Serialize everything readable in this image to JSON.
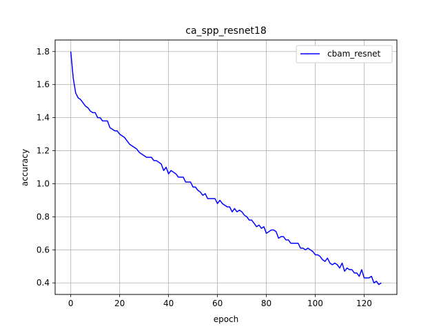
{
  "chart_data": {
    "type": "line",
    "title": "ca_spp_resnet18",
    "xlabel": "epoch",
    "ylabel": "accuracy",
    "xlim": [
      -6.4,
      133.4
    ],
    "ylim": [
      0.33,
      1.87
    ],
    "xticks": [
      0,
      20,
      40,
      60,
      80,
      100,
      120
    ],
    "xtick_labels": [
      "0",
      "20",
      "40",
      "60",
      "80",
      "100",
      "120"
    ],
    "yticks": [
      0.4,
      0.6,
      0.8,
      1.0,
      1.2,
      1.4,
      1.6,
      1.8
    ],
    "ytick_labels": [
      "0.4",
      "0.6",
      "0.8",
      "1.0",
      "1.2",
      "1.4",
      "1.6",
      "1.8"
    ],
    "grid": true,
    "legend_position": "upper right",
    "series": [
      {
        "name": "cbam_resnet",
        "color": "#0000ff",
        "x": [
          0,
          1,
          2,
          3,
          4,
          5,
          6,
          7,
          8,
          9,
          10,
          11,
          12,
          13,
          14,
          15,
          16,
          17,
          18,
          19,
          20,
          21,
          22,
          23,
          24,
          25,
          26,
          27,
          28,
          29,
          30,
          31,
          32,
          33,
          34,
          35,
          36,
          37,
          38,
          39,
          40,
          41,
          42,
          43,
          44,
          45,
          46,
          47,
          48,
          49,
          50,
          51,
          52,
          53,
          54,
          55,
          56,
          57,
          58,
          59,
          60,
          61,
          62,
          63,
          64,
          65,
          66,
          67,
          68,
          69,
          70,
          71,
          72,
          73,
          74,
          75,
          76,
          77,
          78,
          79,
          80,
          81,
          82,
          83,
          84,
          85,
          86,
          87,
          88,
          89,
          90,
          91,
          92,
          93,
          94,
          95,
          96,
          97,
          98,
          99,
          100,
          101,
          102,
          103,
          104,
          105,
          106,
          107,
          108,
          109,
          110,
          111,
          112,
          113,
          114,
          115,
          116,
          117,
          118,
          119,
          120,
          121,
          122,
          123,
          124,
          125,
          126,
          127
        ],
        "values": [
          1.8,
          1.64,
          1.55,
          1.52,
          1.51,
          1.49,
          1.47,
          1.46,
          1.44,
          1.43,
          1.43,
          1.4,
          1.4,
          1.38,
          1.38,
          1.38,
          1.34,
          1.33,
          1.32,
          1.32,
          1.3,
          1.29,
          1.28,
          1.26,
          1.24,
          1.23,
          1.22,
          1.21,
          1.19,
          1.18,
          1.17,
          1.16,
          1.16,
          1.16,
          1.14,
          1.14,
          1.13,
          1.12,
          1.08,
          1.1,
          1.06,
          1.08,
          1.07,
          1.06,
          1.04,
          1.04,
          1.04,
          1.01,
          1.01,
          1.01,
          0.98,
          0.98,
          0.96,
          0.95,
          0.93,
          0.94,
          0.91,
          0.91,
          0.91,
          0.91,
          0.88,
          0.9,
          0.88,
          0.87,
          0.86,
          0.86,
          0.83,
          0.85,
          0.83,
          0.84,
          0.83,
          0.81,
          0.8,
          0.78,
          0.78,
          0.76,
          0.74,
          0.75,
          0.73,
          0.74,
          0.7,
          0.71,
          0.72,
          0.72,
          0.71,
          0.67,
          0.68,
          0.68,
          0.66,
          0.66,
          0.64,
          0.64,
          0.64,
          0.64,
          0.61,
          0.61,
          0.6,
          0.61,
          0.6,
          0.59,
          0.57,
          0.57,
          0.56,
          0.54,
          0.53,
          0.55,
          0.52,
          0.51,
          0.52,
          0.51,
          0.49,
          0.52,
          0.47,
          0.49,
          0.48,
          0.48,
          0.46,
          0.46,
          0.44,
          0.48,
          0.43,
          0.43,
          0.43,
          0.44,
          0.4,
          0.41,
          0.39,
          0.4
        ]
      }
    ]
  }
}
